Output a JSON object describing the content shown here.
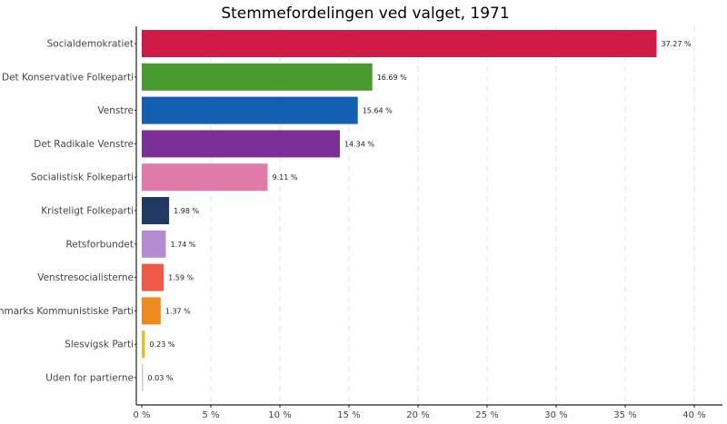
{
  "chart_data": {
    "type": "bar",
    "orientation": "horizontal",
    "title": "Stemmefordelingen ved valget, 1971",
    "xlabel": "",
    "ylabel": "",
    "xlim": [
      0,
      41
    ],
    "x_ticks": [
      0,
      5,
      10,
      15,
      20,
      25,
      30,
      35,
      40
    ],
    "x_tick_labels": [
      "0 %",
      "5 %",
      "10 %",
      "15 %",
      "20 %",
      "25 %",
      "30 %",
      "35 %",
      "40 %"
    ],
    "grid": "vertical dashed",
    "categories": [
      "Socialdemokratiet",
      "Det Konservative Folkeparti",
      "Venstre",
      "Det Radikale Venstre",
      "Socialistisk Folkeparti",
      "Kristeligt Folkeparti",
      "Retsforbundet",
      "Venstresocialisterne",
      "Danmarks Kommunistiske Parti",
      "Slesvigsk Parti",
      "Uden for partierne"
    ],
    "values": [
      37.27,
      16.69,
      15.64,
      14.34,
      9.11,
      1.98,
      1.74,
      1.59,
      1.37,
      0.23,
      0.03
    ],
    "value_labels": [
      "37.27 %",
      "16.69 %",
      "15.64 %",
      "14.34 %",
      "9.11 %",
      "1.98 %",
      "1.74 %",
      "1.59 %",
      "1.37 %",
      "0.23 %",
      "0.03 %"
    ],
    "colors": [
      "#d11a45",
      "#4a9b2f",
      "#1460b0",
      "#7b2f97",
      "#e07aa8",
      "#213a63",
      "#b48bd1",
      "#ef5a47",
      "#ee8a1d",
      "#e2c01f",
      "#cccccc"
    ]
  }
}
